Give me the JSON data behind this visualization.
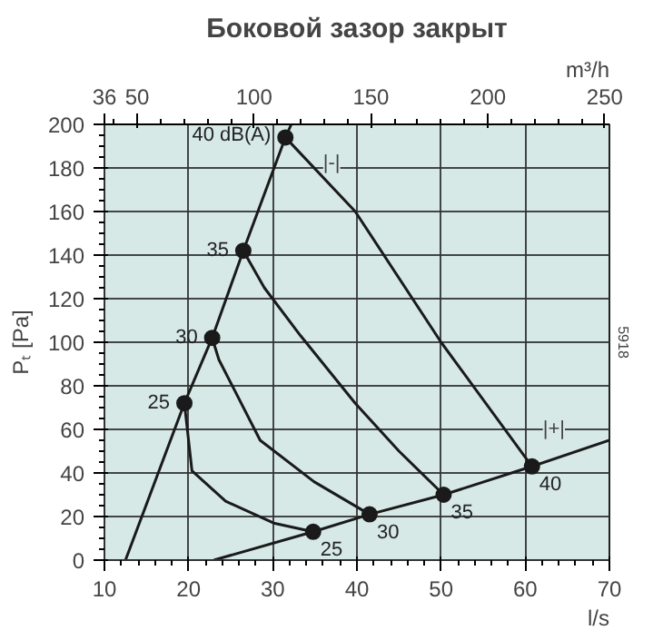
{
  "chart_data": {
    "type": "line",
    "title": "Боковой зазор закрыт",
    "xlabel": "l/s",
    "x2label": "m³/h",
    "ylabel": "Pₜ [Pa]",
    "xlim": [
      10,
      70
    ],
    "xticks": [
      10,
      20,
      30,
      40,
      50,
      60,
      70
    ],
    "ylim": [
      0,
      200
    ],
    "yticks": [
      0,
      20,
      40,
      60,
      80,
      100,
      120,
      140,
      160,
      180,
      200
    ],
    "x2lim": [
      36,
      252
    ],
    "x2ticks": [
      36,
      50,
      100,
      150,
      200,
      250
    ],
    "grid": true,
    "marker": "none",
    "line_style": "solid",
    "series": [
      {
        "color": "#1a1a1a",
        "x": [
          12.5,
          19.5,
          22.8,
          26.5,
          31.5,
          32.2
        ],
        "values": [
          0,
          72,
          102,
          142,
          194,
          200
        ]
      },
      {
        "color": "#1a1a1a",
        "x": [
          23,
          34.8,
          41.5,
          50.3,
          60.8,
          70
        ],
        "values": [
          0,
          13,
          21,
          30,
          43,
          55
        ]
      },
      {
        "color": "#1a1a1a",
        "x": [
          19.5,
          20.4,
          24.4,
          30.1,
          34.8
        ],
        "values": [
          72,
          41,
          27,
          17,
          13
        ]
      },
      {
        "color": "#1a1a1a",
        "x": [
          22.8,
          23.6,
          28.5,
          34.9,
          41.5
        ],
        "values": [
          102,
          92,
          55,
          36,
          21
        ]
      },
      {
        "color": "#1a1a1a",
        "x": [
          26.5,
          29,
          33.3,
          39.8,
          45,
          50.3
        ],
        "values": [
          142,
          125,
          103,
          72,
          50,
          30
        ]
      },
      {
        "color": "#1a1a1a",
        "x": [
          31.5,
          39.8,
          50,
          60.8
        ],
        "values": [
          194,
          160,
          100,
          43
        ]
      },
      {
        "type": "scatter",
        "marker": "circle",
        "color": "#1a1a1a",
        "x": [
          19.5,
          22.8,
          26.5,
          31.5,
          34.8,
          41.5,
          50.3,
          60.8
        ],
        "values": [
          72,
          102,
          142,
          194,
          13,
          21,
          30,
          43
        ]
      }
    ],
    "annotations": [
      {
        "text": "40 dB(A)",
        "x": 31.5,
        "y": 194
      },
      {
        "text": "35",
        "x": 26.5,
        "y": 142
      },
      {
        "text": "30",
        "x": 22.8,
        "y": 102
      },
      {
        "text": "25",
        "x": 19.5,
        "y": 72
      },
      {
        "text": "25",
        "x": 34.8,
        "y": 13
      },
      {
        "text": "30",
        "x": 41.5,
        "y": 21
      },
      {
        "text": "35",
        "x": 50.3,
        "y": 30
      },
      {
        "text": "40",
        "x": 60.8,
        "y": 43
      },
      "|-|",
      "|+|",
      "5918"
    ]
  }
}
